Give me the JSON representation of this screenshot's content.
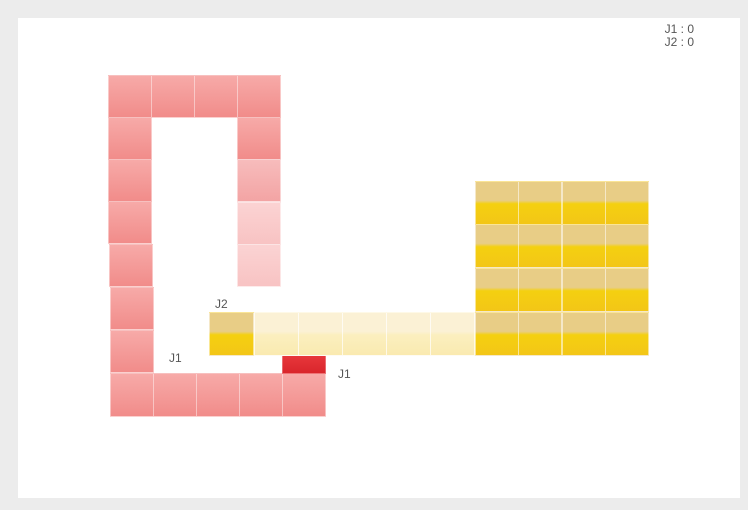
{
  "score": {
    "j1_line": "J1 : 0",
    "j2_line": "J2 : 0"
  },
  "players": {
    "j1": {
      "label": "J1",
      "color": "#f18c8a",
      "head_color": "#e8383c",
      "tail_label": "J1"
    },
    "j2": {
      "label": "J2",
      "color": "#f3c617"
    }
  }
}
